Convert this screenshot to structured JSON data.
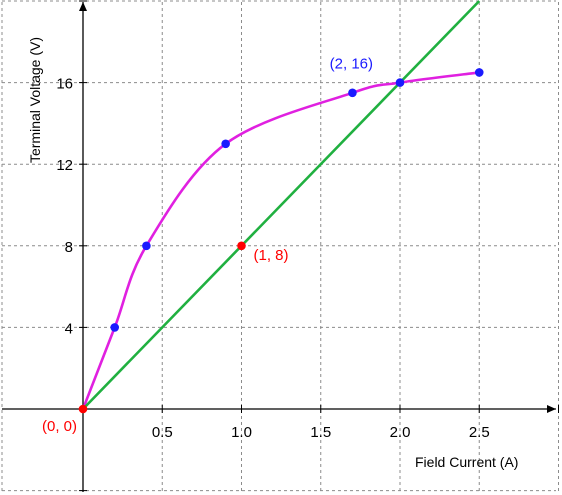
{
  "chart_data": {
    "type": "line",
    "title": "",
    "xlabel": "Field Current (A)",
    "ylabel": "Terminal Voltage (V)",
    "xlim": [
      0,
      3
    ],
    "ylim": [
      0,
      20
    ],
    "grid": true,
    "x_ticks": [
      "0.5",
      "1.0",
      "1.5",
      "2.0",
      "2.5"
    ],
    "y_ticks": [
      "4",
      "8",
      "12",
      "16"
    ],
    "series": [
      {
        "kind": "curve",
        "color": "#e020e0",
        "x": [
          0,
          0.2,
          0.4,
          0.9,
          1.7,
          2.0,
          2.5
        ],
        "y": [
          0,
          4,
          8,
          13,
          15.5,
          16,
          16.5
        ],
        "marker_color": "#1a1aff"
      },
      {
        "kind": "line",
        "color": "#20b040",
        "x": [
          0,
          2.5
        ],
        "y": [
          0,
          20
        ]
      }
    ],
    "annotations": [
      {
        "text": "(0, 0)",
        "x": 0,
        "y": 0,
        "color": "#ff0000",
        "placement": "below-left",
        "marker_color": "#ff0000"
      },
      {
        "text": "(1, 8)",
        "x": 1,
        "y": 8,
        "color": "#ff0000",
        "placement": "right",
        "marker_color": "#ff0000"
      },
      {
        "text": "(2, 16)",
        "x": 2,
        "y": 16,
        "color": "#1a1aff",
        "placement": "above-left",
        "marker_color": ""
      }
    ]
  }
}
